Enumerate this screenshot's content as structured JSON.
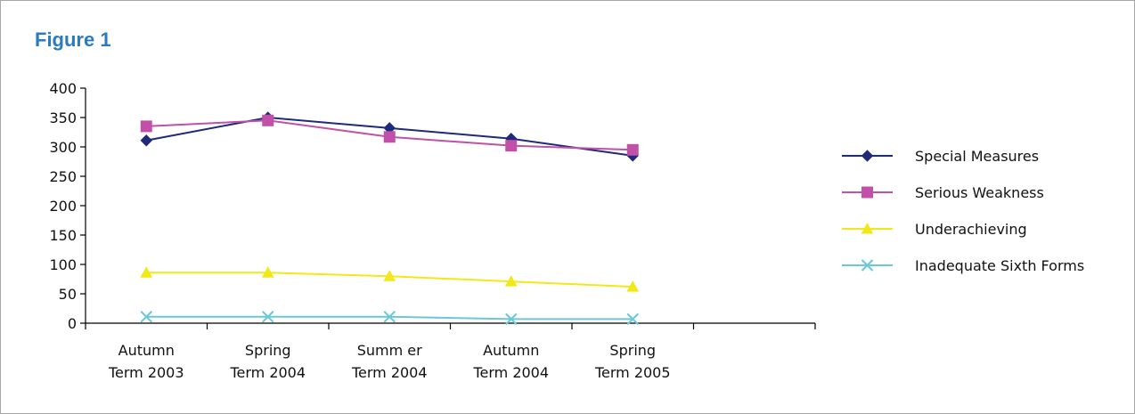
{
  "figure": {
    "title": "Figure 1"
  },
  "chart_data": {
    "type": "line",
    "title": "",
    "xlabel": "",
    "ylabel": "",
    "ylim": [
      0,
      400
    ],
    "yticks": [
      0,
      50,
      100,
      150,
      200,
      250,
      300,
      350,
      400
    ],
    "categories": [
      [
        "Autumn",
        "Term 2003"
      ],
      [
        "Spring",
        "Term 2004"
      ],
      [
        "Summ er",
        "Term 2004"
      ],
      [
        "Autumn",
        "Term 2004"
      ],
      [
        "Spring",
        "Term 2005"
      ]
    ],
    "grid": false,
    "legend_position": "right",
    "series": [
      {
        "name": "Special Measures",
        "marker": "diamond",
        "color": "#1f2a7a",
        "values": [
          311,
          350,
          332,
          314,
          285
        ]
      },
      {
        "name": "Serious Weakness",
        "marker": "square",
        "color": "#c050a8",
        "values": [
          335,
          345,
          317,
          302,
          295
        ]
      },
      {
        "name": "Underachieving",
        "marker": "triangle",
        "color": "#f2e818",
        "values": [
          86,
          86,
          80,
          71,
          62
        ]
      },
      {
        "name": "Inadequate Sixth Forms",
        "marker": "x",
        "color": "#6ac8d8",
        "values": [
          11,
          11,
          11,
          7,
          7
        ]
      }
    ]
  }
}
